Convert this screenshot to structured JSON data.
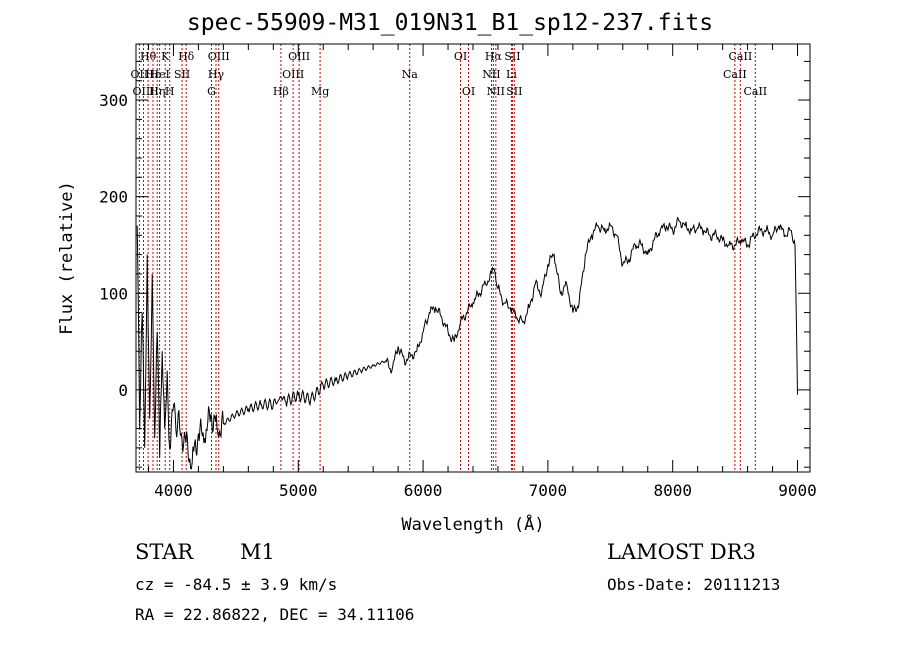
{
  "chart_data": {
    "type": "line",
    "title": "spec-55909-M31_019N31_B1_sp12-237.fits",
    "xlabel": "Wavelength (Å)",
    "ylabel": "Flux (relative)",
    "xlim": [
      3700,
      9100
    ],
    "ylim": [
      -85,
      358
    ],
    "x_ticks": [
      4000,
      5000,
      6000,
      7000,
      8000,
      9000
    ],
    "x_tick_labels": [
      "4000",
      "5000",
      "6000",
      "7000",
      "8000",
      "9000"
    ],
    "y_ticks": [
      0,
      100,
      200,
      300
    ],
    "y_tick_labels": [
      "0",
      "100",
      "200",
      "300"
    ],
    "series": [
      {
        "name": "spectrum",
        "x": [
          3710,
          3730,
          3750,
          3770,
          3790,
          3810,
          3830,
          3850,
          3870,
          3890,
          3910,
          3930,
          3950,
          3970,
          3990,
          4050,
          4100,
          4150,
          4200,
          4250,
          4300,
          4350,
          4400,
          4500,
          4600,
          4700,
          4800,
          4860,
          4900,
          5000,
          5100,
          5200,
          5300,
          5400,
          5500,
          5600,
          5700,
          5750,
          5800,
          5850,
          5900,
          5950,
          6000,
          6050,
          6100,
          6150,
          6200,
          6250,
          6300,
          6350,
          6400,
          6450,
          6500,
          6550,
          6570,
          6600,
          6650,
          6700,
          6750,
          6800,
          6850,
          6900,
          6950,
          7000,
          7050,
          7100,
          7150,
          7200,
          7250,
          7300,
          7350,
          7400,
          7450,
          7500,
          7550,
          7600,
          7650,
          7700,
          7750,
          7800,
          7850,
          7900,
          7950,
          8000,
          8050,
          8100,
          8150,
          8200,
          8250,
          8300,
          8350,
          8400,
          8450,
          8500,
          8550,
          8600,
          8650,
          8700,
          8750,
          8800,
          8850,
          8900,
          8950,
          8980,
          9000
        ],
        "y": [
          170,
          -40,
          80,
          -60,
          140,
          -30,
          120,
          -50,
          60,
          -70,
          40,
          -40,
          20,
          -60,
          -20,
          -40,
          -55,
          -75,
          -45,
          -50,
          -25,
          -40,
          -35,
          -25,
          -20,
          -15,
          -15,
          -8,
          -12,
          -5,
          -10,
          5,
          10,
          15,
          20,
          25,
          30,
          20,
          45,
          30,
          35,
          40,
          60,
          80,
          85,
          75,
          60,
          50,
          70,
          80,
          90,
          100,
          110,
          120,
          125,
          105,
          90,
          85,
          75,
          70,
          85,
          110,
          100,
          130,
          140,
          100,
          110,
          80,
          90,
          140,
          160,
          170,
          165,
          170,
          160,
          130,
          135,
          150,
          150,
          140,
          155,
          165,
          170,
          165,
          175,
          170,
          165,
          168,
          165,
          160,
          160,
          155,
          150,
          150,
          155,
          150,
          160,
          165,
          165,
          160,
          170,
          160,
          165,
          150,
          -5
        ]
      }
    ],
    "lines": [
      {
        "name": "Hθ",
        "x": 3797,
        "row": 1
      },
      {
        "name": "OII",
        "x": 3727,
        "row": 2
      },
      {
        "name": "OIII",
        "x": 3760,
        "row": 3
      },
      {
        "name": "Hε",
        "x": 3836,
        "row": 2
      },
      {
        "name": "Hη",
        "x": 3870,
        "row": 3
      },
      {
        "name": "K",
        "x": 3934,
        "row": 1
      },
      {
        "name": "HeI",
        "x": 3889,
        "row": 2
      },
      {
        "name": "H",
        "x": 3970,
        "row": 3
      },
      {
        "name": "SII",
        "x": 4069,
        "row": 2
      },
      {
        "name": "Hδ",
        "x": 4102,
        "row": 1
      },
      {
        "name": "OIII",
        "x": 4363,
        "row": 1
      },
      {
        "name": "Hγ",
        "x": 4341,
        "row": 2
      },
      {
        "name": "G",
        "x": 4305,
        "row": 3
      },
      {
        "name": "Hβ",
        "x": 4861,
        "row": 3
      },
      {
        "name": "OIII",
        "x": 5007,
        "row": 1
      },
      {
        "name": "OIII",
        "x": 4959,
        "row": 2
      },
      {
        "name": "Mg",
        "x": 5175,
        "row": 3
      },
      {
        "name": "Na",
        "x": 5893,
        "row": 2
      },
      {
        "name": "OI",
        "x": 6300,
        "row": 1
      },
      {
        "name": "OI",
        "x": 6364,
        "row": 3
      },
      {
        "name": "Hα",
        "x": 6563,
        "row": 1
      },
      {
        "name": "NII",
        "x": 6548,
        "row": 2
      },
      {
        "name": "NII",
        "x": 6583,
        "row": 3
      },
      {
        "name": "SII",
        "x": 6716,
        "row": 1
      },
      {
        "name": "Li",
        "x": 6708,
        "row": 2
      },
      {
        "name": "SII",
        "x": 6731,
        "row": 3
      },
      {
        "name": "CaII",
        "x": 8542,
        "row": 1
      },
      {
        "name": "CaII",
        "x": 8498,
        "row": 2
      },
      {
        "name": "CaII",
        "x": 8662,
        "row": 3
      }
    ]
  },
  "info": {
    "object_class": "STAR",
    "subclass": "M1",
    "survey": "LAMOST DR3",
    "redshift": "cz = -84.5 ± 3.9 km/s",
    "obs_date": "Obs-Date: 20111213",
    "coords": "RA =  22.86822, DEC =  34.11106"
  },
  "colors": {
    "line_marker": "#cc0000",
    "spectrum": "#000000",
    "axis": "#000000"
  }
}
